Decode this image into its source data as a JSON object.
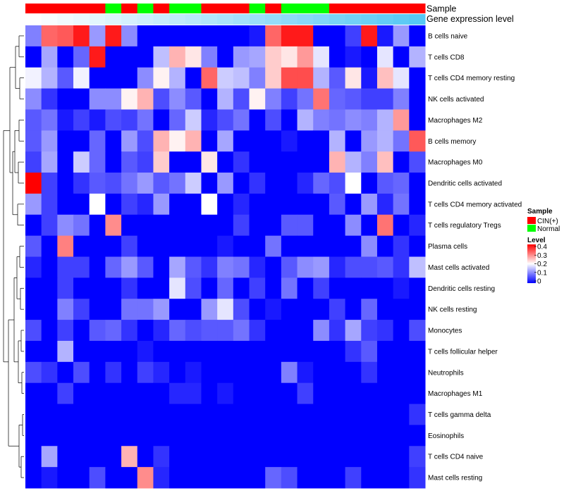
{
  "chart_data": {
    "type": "heatmap",
    "title": "",
    "annotation_labels": {
      "sample": "Sample",
      "expression": "Gene expression level"
    },
    "legend_sample": {
      "title": "Sample",
      "entries": [
        {
          "label": "CIN(+)",
          "color": "#ff0000"
        },
        {
          "label": "Normal",
          "color": "#00ff00"
        }
      ]
    },
    "legend_level": {
      "title": "Level",
      "range": [
        0,
        0.4
      ],
      "ticks": [
        "0.4",
        "0.3",
        "0.2",
        "0.1",
        "0"
      ],
      "colors": [
        "#0000ff",
        "#ffffff",
        "#ff0000"
      ]
    },
    "columns": [
      "CIN",
      "CIN",
      "CIN",
      "CIN",
      "CIN",
      "Normal",
      "CIN",
      "Normal",
      "CIN",
      "Normal",
      "Normal",
      "CIN",
      "CIN",
      "CIN",
      "Normal",
      "CIN",
      "Normal",
      "Normal",
      "Normal",
      "CIN",
      "CIN",
      "CIN",
      "CIN",
      "CIN",
      "CIN"
    ],
    "column_expression_gradient": [
      "#ffffff",
      "#56c8f5"
    ],
    "rows": [
      "B cells naive",
      "T cells CD8",
      "T cells CD4 memory resting",
      "NK cells activated",
      "Macrophages M2",
      "B cells memory",
      "Macrophages M0",
      "Dendritic cells activated",
      "T cells CD4 memory activated",
      "T cells regulatory  Tregs",
      "Plasma cells",
      "Mast cells activated",
      "Dendritic cells resting",
      "NK cells resting",
      "Monocytes",
      "T cells follicular helper",
      "Neutrophils",
      "Macrophages M1",
      "T cells gamma delta",
      "Eosinophils",
      "T cells CD4 naive",
      "Mast cells resting"
    ],
    "values": [
      [
        0.1,
        0.32,
        0.33,
        0.38,
        0.12,
        0.38,
        0.11,
        0.0,
        0.0,
        0.0,
        0.0,
        0.0,
        0.0,
        0.0,
        0.02,
        0.32,
        0.38,
        0.38,
        0.0,
        0.0,
        0.05,
        0.38,
        0.02,
        0.12,
        0.0
      ],
      [
        0.0,
        0.13,
        0.0,
        0.08,
        0.38,
        0.0,
        0.0,
        0.0,
        0.15,
        0.26,
        0.22,
        0.1,
        0.0,
        0.12,
        0.13,
        0.24,
        0.22,
        0.28,
        0.18,
        0.0,
        0.02,
        0.0,
        0.18,
        0.0,
        0.14
      ],
      [
        0.19,
        0.14,
        0.07,
        0.19,
        0.0,
        0.0,
        0.0,
        0.11,
        0.21,
        0.14,
        0.0,
        0.32,
        0.16,
        0.15,
        0.1,
        0.24,
        0.34,
        0.34,
        0.14,
        0.07,
        0.22,
        0.02,
        0.25,
        0.18,
        0.0
      ],
      [
        0.11,
        0.04,
        0.0,
        0.0,
        0.11,
        0.11,
        0.21,
        0.26,
        0.06,
        0.11,
        0.07,
        0.0,
        0.14,
        0.06,
        0.21,
        0.1,
        0.05,
        0.09,
        0.31,
        0.08,
        0.07,
        0.05,
        0.05,
        0.1,
        0.0
      ],
      [
        0.07,
        0.09,
        0.02,
        0.05,
        0.02,
        0.06,
        0.05,
        0.09,
        0.0,
        0.08,
        0.16,
        0.03,
        0.06,
        0.09,
        0.0,
        0.06,
        0.0,
        0.14,
        0.1,
        0.09,
        0.11,
        0.1,
        0.14,
        0.28,
        0.0
      ],
      [
        0.07,
        0.12,
        0.0,
        0.0,
        0.08,
        0.0,
        0.12,
        0.06,
        0.26,
        0.21,
        0.26,
        0.0,
        0.13,
        0.0,
        0.0,
        0.0,
        0.02,
        0.0,
        0.0,
        0.14,
        0.0,
        0.12,
        0.14,
        0.09,
        0.33
      ],
      [
        0.05,
        0.13,
        0.0,
        0.16,
        0.08,
        0.0,
        0.07,
        0.05,
        0.24,
        0.0,
        0.0,
        0.22,
        0.0,
        0.04,
        0.0,
        0.0,
        0.0,
        0.0,
        0.0,
        0.26,
        0.14,
        0.1,
        0.25,
        0.0,
        0.06
      ],
      [
        0.4,
        0.05,
        0.0,
        0.04,
        0.07,
        0.06,
        0.09,
        0.12,
        0.07,
        0.09,
        0.16,
        0.0,
        0.12,
        0.0,
        0.04,
        0.0,
        0.0,
        0.03,
        0.08,
        0.06,
        0.2,
        0.0,
        0.07,
        0.08,
        0.0
      ],
      [
        0.12,
        0.05,
        0.0,
        0.0,
        0.2,
        0.0,
        0.05,
        0.03,
        0.12,
        0.0,
        0.0,
        0.2,
        0.0,
        0.03,
        0.0,
        0.0,
        0.0,
        0.0,
        0.0,
        0.07,
        0.0,
        0.12,
        0.03,
        0.09,
        0.0
      ],
      [
        0.0,
        0.05,
        0.11,
        0.09,
        0.0,
        0.29,
        0.0,
        0.0,
        0.0,
        0.0,
        0.0,
        0.0,
        0.0,
        0.05,
        0.0,
        0.0,
        0.07,
        0.07,
        0.0,
        0.0,
        0.11,
        0.0,
        0.31,
        0.0,
        0.03
      ],
      [
        0.07,
        0.0,
        0.3,
        0.0,
        0.0,
        0.0,
        0.05,
        0.0,
        0.0,
        0.0,
        0.0,
        0.0,
        0.02,
        0.0,
        0.0,
        0.09,
        0.0,
        0.0,
        0.0,
        0.0,
        0.0,
        0.11,
        0.0,
        0.04,
        0.0
      ],
      [
        0.03,
        0.0,
        0.05,
        0.05,
        0.0,
        0.08,
        0.12,
        0.07,
        0.0,
        0.13,
        0.07,
        0.04,
        0.1,
        0.09,
        0.03,
        0.0,
        0.07,
        0.11,
        0.12,
        0.03,
        0.06,
        0.06,
        0.07,
        0.04,
        0.15
      ],
      [
        0.0,
        0.0,
        0.05,
        0.0,
        0.0,
        0.0,
        0.04,
        0.0,
        0.0,
        0.18,
        0.06,
        0.0,
        0.08,
        0.0,
        0.05,
        0.0,
        0.09,
        0.0,
        0.05,
        0.0,
        0.0,
        0.0,
        0.0,
        0.02,
        0.0
      ],
      [
        0.0,
        0.0,
        0.1,
        0.05,
        0.0,
        0.0,
        0.09,
        0.09,
        0.12,
        0.0,
        0.0,
        0.12,
        0.18,
        0.06,
        0.0,
        0.02,
        0.0,
        0.0,
        0.0,
        0.05,
        0.0,
        0.08,
        0.0,
        0.0,
        0.0
      ],
      [
        0.06,
        0.0,
        0.05,
        0.0,
        0.07,
        0.08,
        0.04,
        0.0,
        0.03,
        0.08,
        0.06,
        0.07,
        0.07,
        0.09,
        0.04,
        0.0,
        0.0,
        0.0,
        0.11,
        0.04,
        0.13,
        0.05,
        0.04,
        0.0,
        0.06
      ],
      [
        0.0,
        0.0,
        0.14,
        0.0,
        0.0,
        0.0,
        0.0,
        0.02,
        0.0,
        0.0,
        0.0,
        0.0,
        0.0,
        0.0,
        0.0,
        0.0,
        0.0,
        0.0,
        0.0,
        0.0,
        0.04,
        0.07,
        0.0,
        0.0,
        0.0
      ],
      [
        0.06,
        0.04,
        0.0,
        0.06,
        0.0,
        0.04,
        0.0,
        0.05,
        0.03,
        0.0,
        0.02,
        0.0,
        0.0,
        0.0,
        0.0,
        0.0,
        0.1,
        0.02,
        0.0,
        0.0,
        0.0,
        0.04,
        0.0,
        0.0,
        0.0
      ],
      [
        0.0,
        0.0,
        0.05,
        0.0,
        0.0,
        0.0,
        0.0,
        0.0,
        0.0,
        0.03,
        0.03,
        0.0,
        0.02,
        0.0,
        0.0,
        0.0,
        0.0,
        0.05,
        0.0,
        0.0,
        0.0,
        0.0,
        0.0,
        0.0,
        0.0
      ],
      [
        0.0,
        0.0,
        0.0,
        0.0,
        0.0,
        0.0,
        0.0,
        0.0,
        0.0,
        0.0,
        0.0,
        0.0,
        0.0,
        0.0,
        0.0,
        0.0,
        0.0,
        0.0,
        0.0,
        0.0,
        0.0,
        0.0,
        0.0,
        0.0,
        0.04
      ],
      [
        0.0,
        0.0,
        0.0,
        0.0,
        0.0,
        0.0,
        0.0,
        0.0,
        0.0,
        0.0,
        0.0,
        0.0,
        0.0,
        0.0,
        0.0,
        0.0,
        0.0,
        0.0,
        0.0,
        0.0,
        0.0,
        0.0,
        0.0,
        0.0,
        0.0
      ],
      [
        0.0,
        0.13,
        0.0,
        0.0,
        0.0,
        0.0,
        0.26,
        0.0,
        0.04,
        0.0,
        0.0,
        0.0,
        0.0,
        0.0,
        0.0,
        0.0,
        0.0,
        0.0,
        0.0,
        0.0,
        0.0,
        0.0,
        0.0,
        0.0,
        0.05
      ],
      [
        0.0,
        0.02,
        0.0,
        0.0,
        0.06,
        0.0,
        0.0,
        0.29,
        0.03,
        0.0,
        0.0,
        0.0,
        0.0,
        0.0,
        0.0,
        0.08,
        0.06,
        0.0,
        0.0,
        0.0,
        0.05,
        0.0,
        0.0,
        0.0,
        0.04
      ]
    ]
  }
}
